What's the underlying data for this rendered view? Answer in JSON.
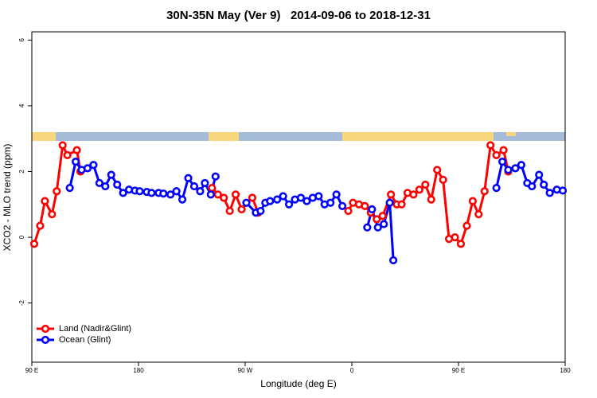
{
  "chart_data": {
    "type": "line",
    "title": "30N-35N May (Ver 9)   2014-09-06 to 2018-12-31",
    "xlabel": "Longitude (deg E)",
    "ylabel": "XCO2 - MLO trend (ppm)",
    "xlim": [
      90,
      540
    ],
    "xticks": [
      {
        "value": 90,
        "label": "90 E"
      },
      {
        "value": 180,
        "label": "180"
      },
      {
        "value": 270,
        "label": "90 W"
      },
      {
        "value": 360,
        "label": "0"
      },
      {
        "value": 450,
        "label": "90 E"
      },
      {
        "value": 540,
        "label": "180"
      }
    ],
    "ylim": [
      -3.8,
      6.25
    ],
    "yticks": [
      -2,
      0,
      2,
      4,
      6
    ],
    "legend": "bottom-left",
    "series": [
      {
        "name": "Land (Nadir&Glint)",
        "color": "#ff0000",
        "x": [
          92,
          97,
          101,
          107,
          111,
          116,
          120,
          128,
          131,
          null,
          242,
          247,
          252,
          257,
          262,
          267,
          276,
          281,
          null,
          357,
          361,
          366,
          371,
          376,
          381,
          386,
          393,
          398,
          402,
          407,
          412,
          417,
          422,
          427,
          432,
          437,
          442,
          447,
          452,
          457,
          462,
          467,
          472,
          477,
          482,
          488,
          492
        ],
        "values": [
          -0.2,
          0.35,
          1.1,
          0.7,
          1.4,
          2.8,
          2.5,
          2.65,
          2.0,
          null,
          1.5,
          1.3,
          1.2,
          0.8,
          1.3,
          0.85,
          1.2,
          0.75,
          null,
          0.8,
          1.05,
          1.0,
          0.95,
          0.75,
          0.55,
          0.65,
          1.3,
          1.0,
          1.0,
          1.35,
          1.3,
          1.45,
          1.6,
          1.15,
          2.05,
          1.75,
          -0.05,
          0.0,
          -0.2,
          0.35,
          1.1,
          0.7,
          1.4,
          2.8,
          2.5,
          2.65,
          2.0
        ]
      },
      {
        "name": "Ocean (Glint)",
        "color": "#0000ff",
        "x": [
          122,
          127,
          132,
          137,
          142,
          147,
          152,
          157,
          162,
          167,
          172,
          177,
          181,
          187,
          191,
          197,
          201,
          207,
          212,
          217,
          222,
          227,
          232,
          236,
          241,
          245,
          null,
          271,
          279,
          283,
          287,
          291,
          297,
          302,
          307,
          312,
          317,
          322,
          327,
          332,
          337,
          342,
          347,
          352,
          null,
          373,
          377,
          382,
          387,
          392,
          395,
          null,
          482,
          487,
          492,
          498,
          503,
          508,
          512,
          518,
          522,
          527,
          533,
          538
        ],
        "values": [
          1.5,
          2.3,
          2.05,
          2.1,
          2.2,
          1.65,
          1.55,
          1.9,
          1.6,
          1.35,
          1.45,
          1.42,
          1.4,
          1.38,
          1.35,
          1.35,
          1.33,
          1.3,
          1.4,
          1.15,
          1.8,
          1.55,
          1.4,
          1.65,
          1.3,
          1.85,
          null,
          1.05,
          0.75,
          0.8,
          1.05,
          1.1,
          1.15,
          1.25,
          1.0,
          1.15,
          1.2,
          1.1,
          1.2,
          1.25,
          1.0,
          1.05,
          1.3,
          0.95,
          null,
          0.3,
          0.85,
          0.3,
          0.4,
          1.05,
          -0.7,
          null,
          1.5,
          2.3,
          2.05,
          2.1,
          2.2,
          1.65,
          1.55,
          1.9,
          1.6,
          1.35,
          1.45,
          1.42
        ]
      }
    ]
  }
}
